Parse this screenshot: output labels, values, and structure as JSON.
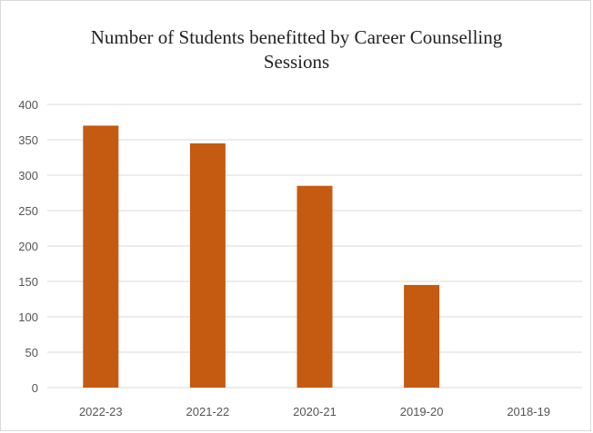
{
  "colors": {
    "bar": "#C55A11",
    "gridline": "#d9d9d9",
    "axis_text": "#555555",
    "title_text": "#222222"
  },
  "chart_data": {
    "type": "bar",
    "title": "Number of Students benefitted  by Career Counselling\nSessions",
    "xlabel": "",
    "ylabel": "",
    "categories": [
      "2022-23",
      "2021-22",
      "2020-21",
      "2019-20",
      "2018-19"
    ],
    "values": [
      370,
      345,
      285,
      145,
      0
    ],
    "ylim": [
      0,
      400
    ],
    "yticks": [
      0,
      50,
      100,
      150,
      200,
      250,
      300,
      350,
      400
    ],
    "grid": true,
    "legend": "none"
  }
}
